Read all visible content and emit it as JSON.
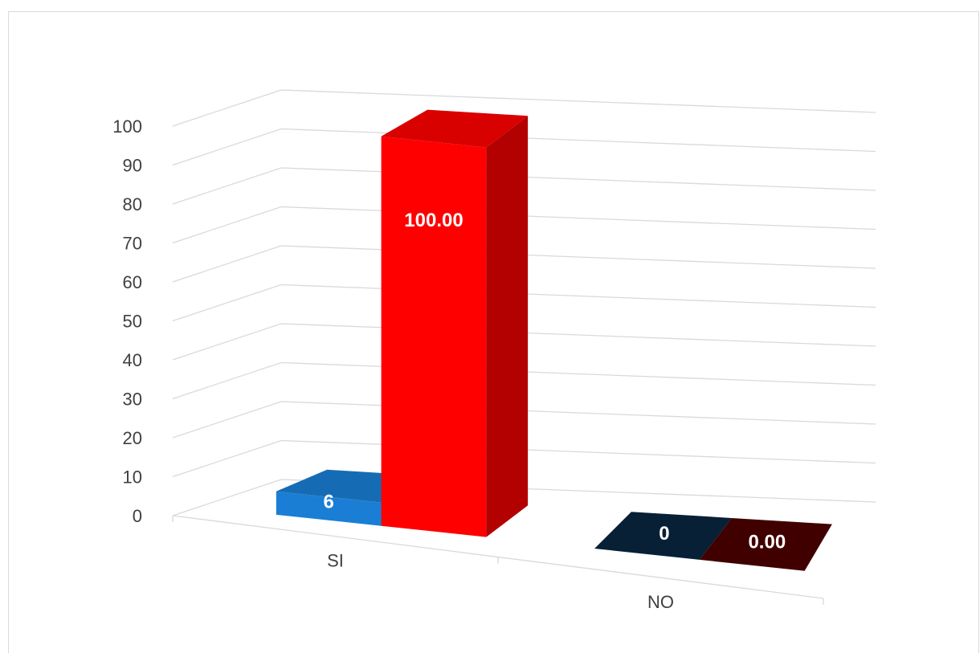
{
  "chart_data": {
    "type": "bar3d",
    "categories": [
      "SI",
      "NO"
    ],
    "series": [
      {
        "color": "#1a7fd4",
        "values": [
          6,
          0
        ]
      },
      {
        "color": "#ff0000",
        "values": [
          100,
          0
        ],
        "value_labels": [
          "100.00",
          "0.00"
        ]
      }
    ],
    "ylim": [
      0,
      100
    ],
    "yticks": [
      0,
      10,
      20,
      30,
      40,
      50,
      60,
      70,
      80,
      90,
      100
    ],
    "grid": true
  }
}
